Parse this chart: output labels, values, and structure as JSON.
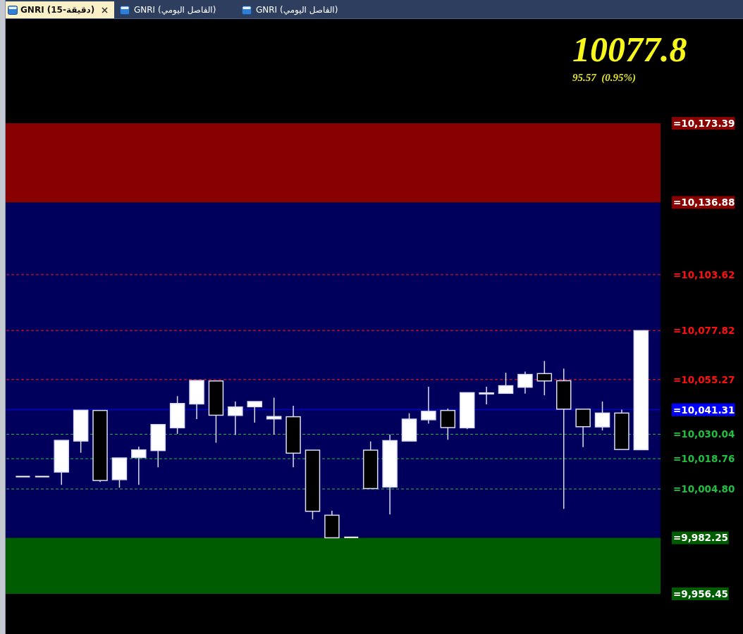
{
  "chart_data": {
    "type": "candlestick",
    "title": "GNRI (دقيقة-15)",
    "annotations": [
      "GNRI (الفاصل اليومي)",
      "GNRI (الفاصل اليومي)",
      "10077.8",
      "95.57  (0.95%)"
    ],
    "categories": [
      null,
      null,
      null,
      null,
      null,
      null,
      null,
      null,
      null,
      null,
      null,
      null,
      null,
      null,
      null,
      null,
      null,
      null,
      null,
      null,
      null,
      null,
      null,
      null,
      null,
      null,
      null,
      null,
      null,
      null,
      null,
      null,
      null
    ],
    "ohlc": [
      [
        10010.5,
        10010.5,
        10010.5,
        10010.5
      ],
      [
        10010.5,
        10010.5,
        10010.5,
        10010.5
      ],
      [
        10012.6,
        10027.2,
        10006.7,
        10027.2
      ],
      [
        10026.9,
        10041.1,
        10021.5,
        10041.1
      ],
      [
        10041.0,
        10041.0,
        10008.0,
        10008.7
      ],
      [
        10009.1,
        10019.1,
        10005.4,
        10019.1
      ],
      [
        10019.3,
        10024.3,
        10006.7,
        10022.8
      ],
      [
        10022.5,
        10034.5,
        10014.8,
        10034.5
      ],
      [
        10033.0,
        10047.6,
        10030.2,
        10044.2
      ],
      [
        10044.0,
        10054.8,
        10037.0,
        10054.8
      ],
      [
        10054.6,
        10054.6,
        10026.1,
        10038.8
      ],
      [
        10038.7,
        10045.1,
        10029.7,
        10042.6
      ],
      [
        10042.7,
        10045.1,
        10035.4,
        10045.1
      ],
      [
        10037.1,
        10046.9,
        10029.9,
        10038.2
      ],
      [
        10038.1,
        10043.2,
        10014.8,
        10021.3
      ],
      [
        10022.7,
        10022.7,
        9990.8,
        9994.5
      ],
      [
        9992.7,
        9994.8,
        9982.3,
        9982.3
      ],
      [
        9982.5,
        9982.5,
        9982.5,
        9982.5
      ],
      [
        10022.7,
        10026.7,
        10005.0,
        10005.0
      ],
      [
        10005.7,
        10029.9,
        9993.1,
        10027.1
      ],
      [
        10026.9,
        10039.7,
        10026.9,
        10037.0
      ],
      [
        10036.7,
        10051.9,
        10035.0,
        10040.6
      ],
      [
        10041.0,
        10041.9,
        10027.5,
        10033.1
      ],
      [
        10033.0,
        10049.2,
        10032.4,
        10049.2
      ],
      [
        10048.6,
        10051.9,
        10043.8,
        10049.1
      ],
      [
        10048.9,
        10058.4,
        10048.9,
        10052.4
      ],
      [
        10051.7,
        10058.9,
        10048.8,
        10057.6
      ],
      [
        10058.0,
        10063.8,
        10048.0,
        10054.6
      ],
      [
        10054.7,
        10060.3,
        9995.6,
        10041.6
      ],
      [
        10041.6,
        10041.6,
        10024.1,
        10033.5
      ],
      [
        10033.4,
        10045.1,
        10031.8,
        10039.8
      ],
      [
        10039.8,
        10041.4,
        10023.0,
        10023.0
      ],
      [
        10022.9,
        10077.8,
        10022.9,
        10077.8
      ]
    ],
    "colors": [
      "#ffffff",
      "#ffffff",
      "#ffffff",
      "#ffffff",
      "#000000",
      "#ffffff",
      "#ffffff",
      "#ffffff",
      "#ffffff",
      "#ffffff",
      "#000000",
      "#ffffff",
      "#ffffff",
      "#ffffff",
      "#000000",
      "#000000",
      "#000000",
      "#ffffff",
      "#000000",
      "#ffffff",
      "#ffffff",
      "#ffffff",
      "#000000",
      "#ffffff",
      "#ffffff",
      "#ffffff",
      "#ffffff",
      "#000000",
      "#000000",
      "#000000",
      "#ffffff",
      "#000000",
      "#ffffff"
    ],
    "ylim": [
      9956.45,
      10173.39
    ],
    "yticks": [
      {
        "value": 10173.39,
        "label": "=10,173.39"
      },
      {
        "value": 10136.88,
        "label": "=10,136.88"
      },
      {
        "value": 10103.62,
        "label": "=10,103.62"
      },
      {
        "value": 10077.82,
        "label": "=10,077.82"
      },
      {
        "value": 10055.27,
        "label": "=10,055.27"
      },
      {
        "value": 10041.31,
        "label": "=10,041.31"
      },
      {
        "value": 10030.04,
        "label": "=10,030.04"
      },
      {
        "value": 10018.76,
        "label": "=10,018.76"
      },
      {
        "value": 10004.8,
        "label": "=10,004.80"
      },
      {
        "value": 9982.25,
        "label": "=9,982.25"
      },
      {
        "value": 9956.45,
        "label": "=9,956.45"
      }
    ],
    "bands": [
      {
        "axis": "y",
        "from": 10136.88,
        "to": 10173.39,
        "color": "#880000"
      },
      {
        "axis": "y",
        "from": 9982.25,
        "to": 10136.88,
        "color": "#00005c"
      },
      {
        "axis": "y",
        "from": 9956.45,
        "to": 9982.25,
        "color": "#005c00"
      }
    ],
    "ref_lines": [
      {
        "axis": "y",
        "value": 10103.62,
        "color": "#ff1010",
        "line_style": "dashed"
      },
      {
        "axis": "y",
        "value": 10077.82,
        "color": "#ff1010",
        "line_style": "dashed"
      },
      {
        "axis": "y",
        "value": 10055.27,
        "color": "#ff1010",
        "line_style": "dashed"
      },
      {
        "axis": "y",
        "value": 10041.31,
        "color": "#0000ff",
        "line_style": "solid"
      },
      {
        "axis": "y",
        "value": 10030.04,
        "color": "#20c040",
        "line_style": "dashed"
      },
      {
        "axis": "y",
        "value": 10018.76,
        "color": "#20c040",
        "line_style": "dashed"
      },
      {
        "axis": "y",
        "value": 10004.8,
        "color": "#20c040",
        "line_style": "dashed"
      }
    ],
    "tick_labels": "y"
  }
}
